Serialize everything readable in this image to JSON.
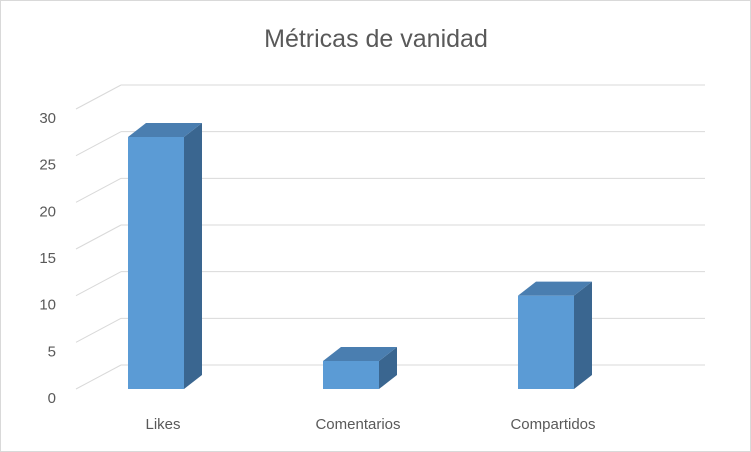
{
  "chart_data": {
    "type": "bar",
    "title": "Métricas de vanidad",
    "categories": [
      "Likes",
      "Comentarios",
      "Compartidos"
    ],
    "values": [
      27,
      3,
      10
    ],
    "ylim": [
      0,
      30
    ],
    "yticks": [
      "0",
      "5",
      "10",
      "15",
      "20",
      "25",
      "30"
    ],
    "xlabel": "",
    "ylabel": "",
    "grid": true,
    "three_d": true,
    "colors": {
      "front": "#5b9bd5",
      "side": "#3a6690",
      "top": "#4a7eb0",
      "grid": "#d9d9d9"
    }
  }
}
